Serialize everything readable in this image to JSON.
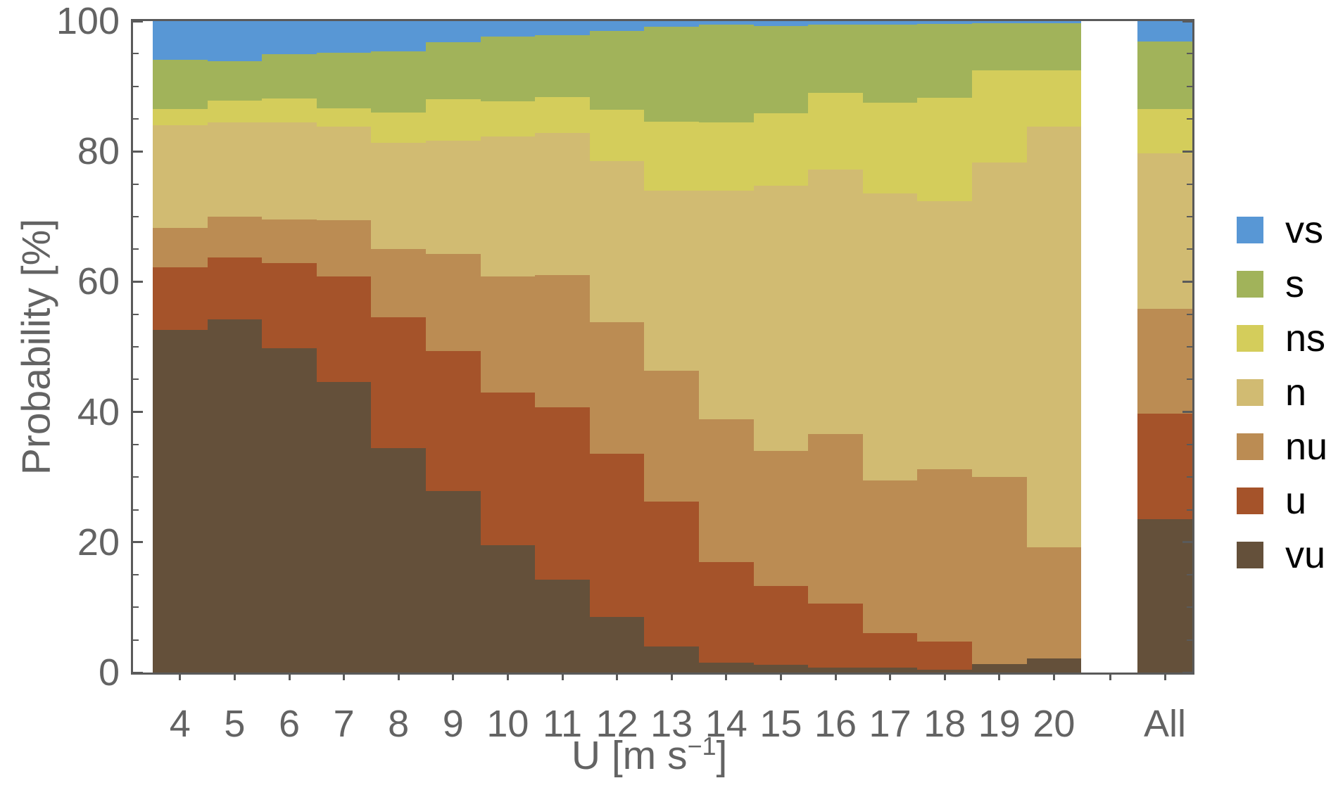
{
  "chart_data": {
    "type": "bar",
    "stacked": true,
    "normalized_percent": true,
    "title": "",
    "xlabel": "U [m s⁻¹]",
    "ylabel": "Probability [%]",
    "ylim": [
      0,
      100
    ],
    "grid": false,
    "legend_position": "right-outside",
    "categories": [
      "4",
      "5",
      "6",
      "7",
      "8",
      "9",
      "10",
      "11",
      "12",
      "13",
      "14",
      "15",
      "16",
      "17",
      "18",
      "19",
      "20",
      "All"
    ],
    "series": [
      {
        "name": "vu",
        "color": "#64503a",
        "values": [
          52.6,
          54.2,
          49.8,
          44.6,
          34.5,
          27.9,
          19.6,
          14.3,
          8.5,
          4.0,
          1.5,
          1.2,
          0.8,
          0.8,
          0.4,
          1.3,
          2.2,
          23.5
        ]
      },
      {
        "name": "u",
        "color": "#a5532a",
        "values": [
          9.6,
          9.5,
          13.0,
          16.2,
          20.0,
          21.5,
          23.4,
          26.4,
          25.1,
          22.2,
          15.5,
          12.1,
          9.8,
          5.2,
          4.4,
          0.0,
          0.0,
          16.2
        ]
      },
      {
        "name": "nu",
        "color": "#bb8c53",
        "values": [
          6.1,
          6.3,
          6.7,
          8.6,
          10.5,
          14.9,
          17.8,
          20.3,
          20.2,
          20.1,
          21.9,
          20.7,
          26.0,
          23.5,
          26.4,
          28.7,
          17.0,
          16.1
        ]
      },
      {
        "name": "n",
        "color": "#d1bb72",
        "values": [
          15.7,
          14.5,
          15.0,
          14.4,
          16.3,
          17.4,
          21.5,
          21.8,
          24.7,
          27.7,
          35.1,
          40.7,
          40.6,
          44.0,
          41.2,
          48.3,
          64.6,
          23.9
        ]
      },
      {
        "name": "ns",
        "color": "#d4cd5b",
        "values": [
          2.5,
          3.3,
          3.6,
          2.8,
          4.7,
          6.3,
          5.4,
          5.5,
          7.9,
          10.6,
          10.5,
          11.2,
          11.8,
          14.0,
          15.8,
          14.1,
          8.6,
          6.8
        ]
      },
      {
        "name": "s",
        "color": "#a1b35a",
        "values": [
          7.6,
          6.1,
          6.8,
          8.6,
          9.4,
          8.8,
          9.9,
          9.5,
          12.1,
          14.5,
          15.0,
          13.4,
          10.5,
          12.0,
          11.4,
          7.3,
          7.3,
          10.4
        ]
      },
      {
        "name": "vs",
        "color": "#5897d5",
        "values": [
          5.9,
          6.1,
          5.1,
          4.8,
          4.6,
          3.2,
          2.4,
          2.2,
          1.5,
          0.9,
          0.5,
          0.7,
          0.5,
          0.5,
          0.4,
          0.3,
          0.3,
          3.1
        ]
      }
    ]
  },
  "y_axis": {
    "title": "Probability [%]",
    "tick_labels": [
      "0",
      "20",
      "40",
      "60",
      "80",
      "100"
    ],
    "tick_values": [
      0,
      20,
      40,
      60,
      80,
      100
    ],
    "minor_step": 5
  },
  "x_axis": {
    "title_pre": "U [m s",
    "title_sup": "−1",
    "title_post": "]",
    "tick_labels": [
      "4",
      "5",
      "6",
      "7",
      "8",
      "9",
      "10",
      "11",
      "12",
      "13",
      "14",
      "15",
      "16",
      "17",
      "18",
      "19",
      "20",
      "All"
    ]
  },
  "legend": {
    "entries": [
      {
        "label": "vs",
        "color": "#5897d5"
      },
      {
        "label": "s",
        "color": "#a1b35a"
      },
      {
        "label": "ns",
        "color": "#d4cd5b"
      },
      {
        "label": "n",
        "color": "#d1bb72"
      },
      {
        "label": "nu",
        "color": "#bb8c53"
      },
      {
        "label": "u",
        "color": "#a5532a"
      },
      {
        "label": "vu",
        "color": "#64503a"
      }
    ]
  },
  "colors": {
    "frame": "#5a5a5a",
    "tick_text": "#636363",
    "legend_text": "#000000",
    "background": "#ffffff"
  }
}
